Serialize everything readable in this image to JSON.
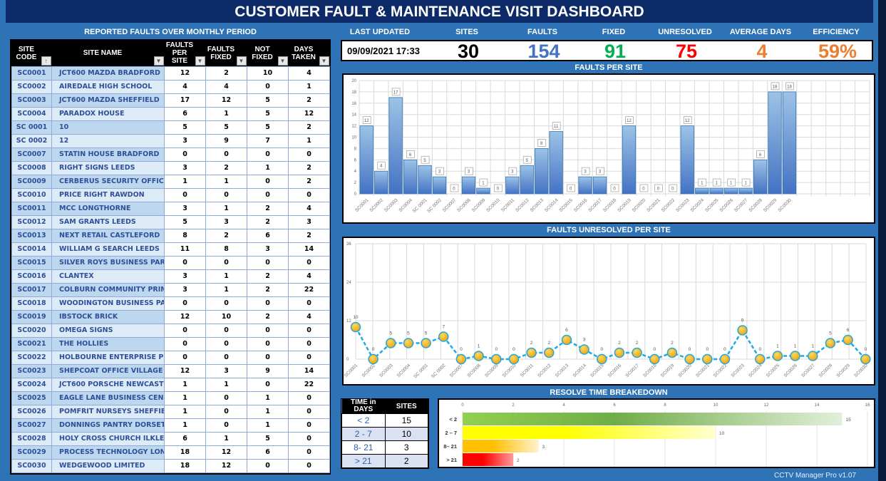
{
  "title": "CUSTOMER FAULT & MAINTENANCE VISIT DASHBOARD",
  "table_title": "REPORTED FAULTS OVER MONTHLY PERIOD",
  "columns": [
    "SITE CODE",
    "SITE NAME",
    "FAULTS PER SITE",
    "FAULTS FIXED",
    "NOT FIXED",
    "DAYS TAKEN"
  ],
  "rows": [
    [
      "SC0001",
      "JCT600 MAZDA BRADFORD",
      "12",
      "2",
      "10",
      "4"
    ],
    [
      "SC0002",
      "AIREDALE HIGH SCHOOL",
      "4",
      "4",
      "0",
      "1"
    ],
    [
      "SC0003",
      "JCT600 MAZDA SHEFFIELD",
      "17",
      "12",
      "5",
      "2"
    ],
    [
      "SC0004",
      "PARADOX HOUSE",
      "6",
      "1",
      "5",
      "12"
    ],
    [
      "SC 0001",
      "10",
      "5",
      "5",
      "5",
      "2"
    ],
    [
      "SC 0002",
      "12",
      "3",
      "9",
      "7",
      "1"
    ],
    [
      "SC0007",
      "STATIN HOUSE BRADFORD",
      "0",
      "0",
      "0",
      "0"
    ],
    [
      "SC0008",
      "RIGHT SIGNS LEEDS",
      "3",
      "2",
      "1",
      "2"
    ],
    [
      "SC0009",
      "CERBERUS SECURITY OFFIC",
      "1",
      "1",
      "0",
      "2"
    ],
    [
      "SC0010",
      "PRICE RIGHT RAWDON",
      "0",
      "0",
      "0",
      "0"
    ],
    [
      "SC0011",
      "MCC LONGTHORNE",
      "3",
      "1",
      "2",
      "4"
    ],
    [
      "SC0012",
      "SAM GRANTS LEEDS",
      "5",
      "3",
      "2",
      "3"
    ],
    [
      "SC0013",
      "NEXT RETAIL CASTLEFORD",
      "8",
      "2",
      "6",
      "2"
    ],
    [
      "SC0014",
      "WILLIAM G SEARCH LEEDS",
      "11",
      "8",
      "3",
      "14"
    ],
    [
      "SC0015",
      "SILVER ROYS BUSINESS PAR",
      "0",
      "0",
      "0",
      "0"
    ],
    [
      "SC0016",
      "CLANTEX",
      "3",
      "1",
      "2",
      "4"
    ],
    [
      "SC0017",
      "COLBURN COMMUNITY PRIM",
      "3",
      "1",
      "2",
      "22"
    ],
    [
      "SC0018",
      "WOODINGTON BUSINESS PA",
      "0",
      "0",
      "0",
      "0"
    ],
    [
      "SC0019",
      "IBSTOCK BRICK",
      "12",
      "10",
      "2",
      "4"
    ],
    [
      "SC0020",
      "OMEGA SIGNS",
      "0",
      "0",
      "0",
      "0"
    ],
    [
      "SC0021",
      "THE HOLLIES",
      "0",
      "0",
      "0",
      "0"
    ],
    [
      "SC0022",
      "HOLBOURNE ENTERPRISE P",
      "0",
      "0",
      "0",
      "0"
    ],
    [
      "SC0023",
      "SHEPCOAT OFFICE VILLAGE",
      "12",
      "3",
      "9",
      "14"
    ],
    [
      "SC0024",
      "JCT600 PORSCHE NEWCAST",
      "1",
      "1",
      "0",
      "22"
    ],
    [
      "SC0025",
      "EAGLE LANE BUSINESS CEN",
      "1",
      "0",
      "1",
      "0"
    ],
    [
      "SC0026",
      "POMFRIT NURSEYS SHEFFIE",
      "1",
      "0",
      "1",
      "0"
    ],
    [
      "SC0027",
      "DONNINGS PANTRY DORSET",
      "1",
      "0",
      "1",
      "0"
    ],
    [
      "SC0028",
      "HOLY CROSS CHURCH ILKLE",
      "6",
      "1",
      "5",
      "0"
    ],
    [
      "SC0029",
      "PROCESS TECHNOLOGY LON",
      "18",
      "12",
      "6",
      "0"
    ],
    [
      "SC0030",
      "WEDGEWOOD LIMITED",
      "18",
      "12",
      "0",
      "0"
    ]
  ],
  "kpis": [
    {
      "label": "LAST UPDATED",
      "value": "09/09/2021 17:33",
      "color": "#000000"
    },
    {
      "label": "SITES",
      "value": "30",
      "color": "#000000"
    },
    {
      "label": "FAULTS",
      "value": "154",
      "color": "#4472c4"
    },
    {
      "label": "FIXED",
      "value": "91",
      "color": "#00b050"
    },
    {
      "label": "UNRESOLVED",
      "value": "75",
      "color": "#ff0000"
    },
    {
      "label": "AVERAGE DAYS",
      "value": "4",
      "color": "#ed7d31"
    },
    {
      "label": "EFFICIENCY",
      "value": "59%",
      "color": "#ed7d31"
    }
  ],
  "chart_data": [
    {
      "type": "bar",
      "title": "FAULTS PER SITE",
      "ylim": [
        0,
        20
      ],
      "yticks": [
        0,
        2,
        4,
        6,
        8,
        10,
        12,
        14,
        16,
        18,
        20
      ],
      "empty_slots": 5,
      "categories": [
        "SC0001",
        "SC0002",
        "SC0003",
        "SC0004",
        "SC 0001",
        "SC 0002",
        "SC0007",
        "SC0008",
        "SC0009",
        "SC0010",
        "SC0011",
        "SC0012",
        "SC0013",
        "SC0014",
        "SC0015",
        "SC0016",
        "SC0017",
        "SC0018",
        "SC0019",
        "SC0020",
        "SC0021",
        "SC0022",
        "SC0023",
        "SC0024",
        "SC0025",
        "SC0026",
        "SC0027",
        "SC0028",
        "SC0029",
        "SC0030"
      ],
      "values": [
        12,
        4,
        17,
        6,
        5,
        3,
        0,
        3,
        1,
        0,
        3,
        5,
        8,
        11,
        0,
        3,
        3,
        0,
        12,
        0,
        0,
        0,
        12,
        1,
        1,
        1,
        1,
        6,
        18,
        18
      ]
    },
    {
      "type": "line",
      "title": "FAULTS UNRESOLVED PER SITE",
      "ylim": [
        0,
        36
      ],
      "yticks": [
        0,
        12,
        24,
        36
      ],
      "categories": [
        "SC0001",
        "SC0002",
        "SC0003",
        "SC0004",
        "SC 0001",
        "SC 0002",
        "SC0007",
        "SC0008",
        "SC0009",
        "SC0010",
        "SC0011",
        "SC0012",
        "SC0013",
        "SC0014",
        "SC0015",
        "SC0016",
        "SC0017",
        "SC0018",
        "SC0019",
        "SC0020",
        "SC0021",
        "SC0022",
        "SC0023",
        "SC0024",
        "SC0025",
        "SC0026",
        "SC0027",
        "SC0028",
        "SC0029",
        "SC0030"
      ],
      "values": [
        10,
        0,
        5,
        5,
        5,
        7,
        0,
        1,
        0,
        0,
        2,
        2,
        6,
        3,
        0,
        2,
        2,
        0,
        2,
        0,
        0,
        0,
        9,
        0,
        1,
        1,
        1,
        5,
        6,
        0
      ]
    },
    {
      "type": "bar",
      "orientation": "horizontal",
      "title": "RESOLVE TIME BREAKEDOWN",
      "xlim": [
        0,
        16
      ],
      "xticks": [
        0,
        2,
        4,
        6,
        8,
        10,
        12,
        14,
        16
      ],
      "categories": [
        "< 2",
        "2 – 7",
        "8– 21",
        "> 21"
      ],
      "values": [
        15,
        10,
        3,
        2
      ],
      "colors": [
        [
          "#92d050",
          "#70ad47",
          "#e2efda"
        ],
        [
          "#ffff00",
          "#ffff00",
          "#ffffd0"
        ],
        [
          "#ffc000",
          "#ffc000",
          "#fff2cc"
        ],
        [
          "#ff0000",
          "#ff0000",
          "#ff9999"
        ]
      ]
    }
  ],
  "resolve_table": {
    "headers": [
      "TIME in DAYS",
      "SITES"
    ],
    "rows": [
      [
        "< 2",
        "15"
      ],
      [
        "2 - 7",
        "10"
      ],
      [
        "8- 21",
        "3"
      ],
      [
        "> 21",
        "2"
      ]
    ]
  },
  "footer": "CCTV Manager Pro v1.07"
}
